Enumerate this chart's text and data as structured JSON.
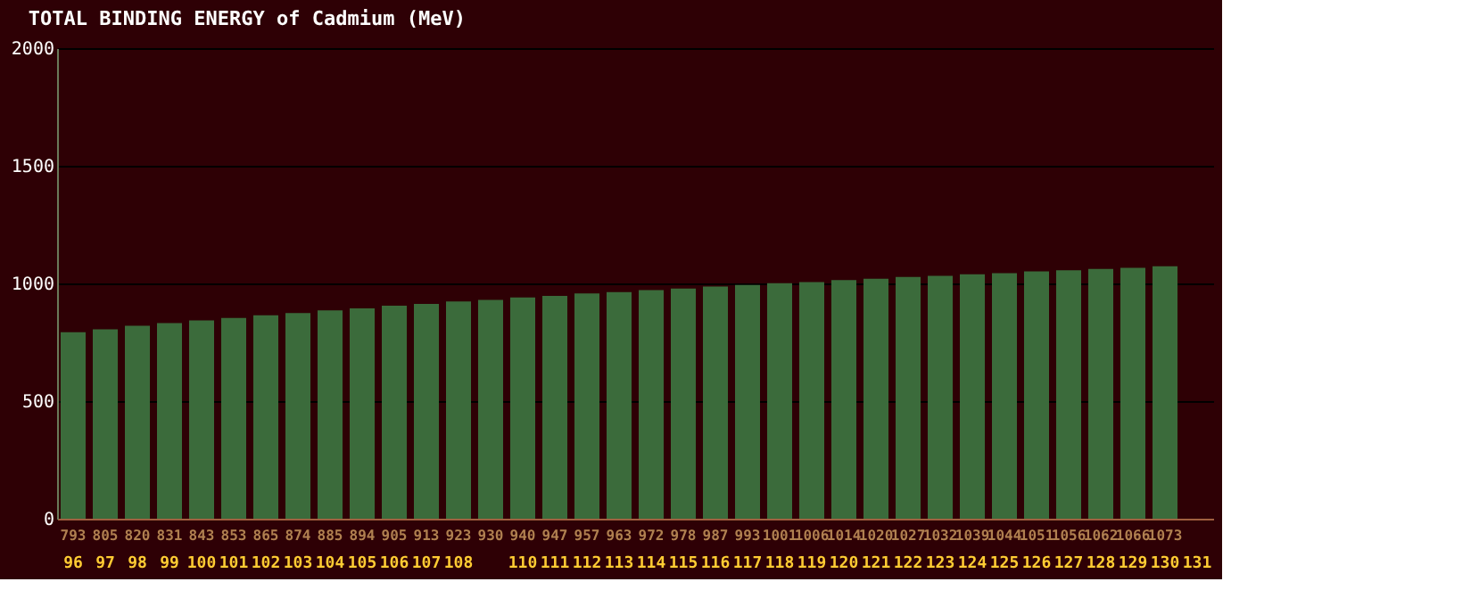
{
  "chart_data": {
    "type": "bar",
    "title": "TOTAL BINDING ENERGY of Cadmium (MeV)",
    "categories": [
      "96",
      "97",
      "98",
      "99",
      "100",
      "101",
      "102",
      "103",
      "104",
      "105",
      "106",
      "107",
      "108",
      null,
      "110",
      "111",
      "112",
      "113",
      "114",
      "115",
      "116",
      "117",
      "118",
      "119",
      "120",
      "121",
      "122",
      "123",
      "124",
      "125",
      "126",
      "127",
      "128",
      "129",
      "130",
      "131"
    ],
    "values": [
      793,
      805,
      820,
      831,
      843,
      853,
      865,
      874,
      885,
      894,
      905,
      913,
      923,
      930,
      940,
      947,
      957,
      963,
      972,
      978,
      987,
      993,
      1001,
      1006,
      1014,
      1020,
      1027,
      1032,
      1039,
      1044,
      1051,
      1056,
      1062,
      1066,
      1073,
      null
    ],
    "color": "#3b6b3b",
    "ylim": [
      0,
      2000
    ],
    "yticks": [
      0,
      500,
      1000,
      1500,
      2000
    ],
    "grid": "y",
    "data_labels": true
  }
}
